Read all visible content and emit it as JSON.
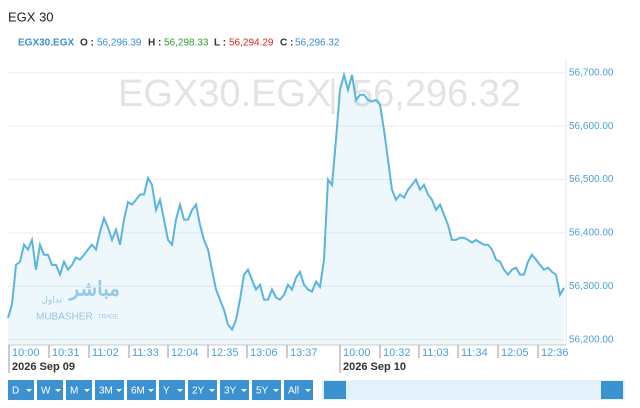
{
  "header": {
    "title": "EGX 30"
  },
  "ohlc": {
    "symbol": "EGX30.EGX",
    "open_label": "O :",
    "open": "56,296.39",
    "high_label": "H :",
    "high": "56,298.33",
    "low_label": "L :",
    "low": "56,294.29",
    "close_label": "C :",
    "close": "56,296.32"
  },
  "logo": {
    "arabic": "مباشر",
    "arabic_sub": "تداول",
    "name": "MUBASHER",
    "sub": "TRADE"
  },
  "toolbar": {
    "buttons": [
      "D",
      "W",
      "M",
      "3M",
      "6M",
      "Y",
      "2Y",
      "3Y",
      "5Y",
      "All"
    ]
  },
  "chart_data": {
    "type": "line",
    "color": "#5ab4e0",
    "grid": true,
    "values": [
      56241,
      56266,
      56340,
      56346,
      56378,
      56369,
      56387,
      56331,
      56378,
      56359,
      56359,
      56340,
      56340,
      56322,
      56346,
      56331,
      56340,
      56354,
      56350,
      56359,
      56369,
      56378,
      56369,
      56402,
      56428,
      56410,
      56387,
      56406,
      56378,
      56425,
      56458,
      56453,
      56462,
      56472,
      56472,
      56503,
      56490,
      56443,
      56462,
      56425,
      56387,
      56378,
      56425,
      56453,
      56425,
      56425,
      56443,
      56453,
      56415,
      56387,
      56369,
      56331,
      56294,
      56275,
      56256,
      56228,
      56219,
      56237,
      56275,
      56322,
      56331,
      56312,
      56294,
      56303,
      56275,
      56275,
      56294,
      56279,
      56275,
      56284,
      56303,
      56294,
      56316,
      56327,
      56303,
      56294,
      56290,
      56309,
      56299,
      56350,
      56500,
      56490,
      56575,
      56668,
      56696,
      56668,
      56696,
      56649,
      56659,
      56659,
      56649,
      56646,
      56649,
      56640,
      56593,
      56537,
      56481,
      56462,
      56472,
      56466,
      56481,
      56490,
      56500,
      56481,
      56490,
      56472,
      56462,
      56443,
      56453,
      56434,
      56415,
      56387,
      56387,
      56391,
      56391,
      56387,
      56382,
      56387,
      56382,
      56378,
      56378,
      56369,
      56350,
      56346,
      56331,
      56322,
      56331,
      56335,
      56322,
      56322,
      56346,
      56359,
      56350,
      56340,
      56331,
      56335,
      56327,
      56322,
      56284,
      56297
    ],
    "xlim": [
      0,
      139
    ],
    "xticks": [
      {
        "value": 0.25,
        "label": "10:00"
      },
      {
        "value": 10.25,
        "label": "10:31"
      },
      {
        "value": 20.25,
        "label": "11:02"
      },
      {
        "value": 30.25,
        "label": "11:33"
      },
      {
        "value": 40,
        "label": "12:04"
      },
      {
        "value": 50,
        "label": "12:35"
      },
      {
        "value": 59.75,
        "label": "13:06"
      },
      {
        "value": 69.75,
        "label": "13:37"
      },
      {
        "value": 83,
        "label": "10:00"
      },
      {
        "value": 93,
        "label": "10:32"
      },
      {
        "value": 102.75,
        "label": "11:03"
      },
      {
        "value": 112.5,
        "label": "11:34"
      },
      {
        "value": 122.5,
        "label": "12:05"
      },
      {
        "value": 132.5,
        "label": "12:36"
      }
    ],
    "date_labels": [
      {
        "value": 0.25,
        "label": "2026 Sep 09"
      },
      {
        "value": 83,
        "label": "2026 Sep 10"
      }
    ],
    "ylim": [
      56190,
      56724
    ],
    "yticks": [
      {
        "value": 56200,
        "label": "56,200.00"
      },
      {
        "value": 56300,
        "label": "56,300.00"
      },
      {
        "value": 56400,
        "label": "56,400.00"
      },
      {
        "value": 56500,
        "label": "56,500.00"
      },
      {
        "value": 56600,
        "label": "56,600.00"
      },
      {
        "value": 56700,
        "label": "56,700.00"
      }
    ]
  }
}
